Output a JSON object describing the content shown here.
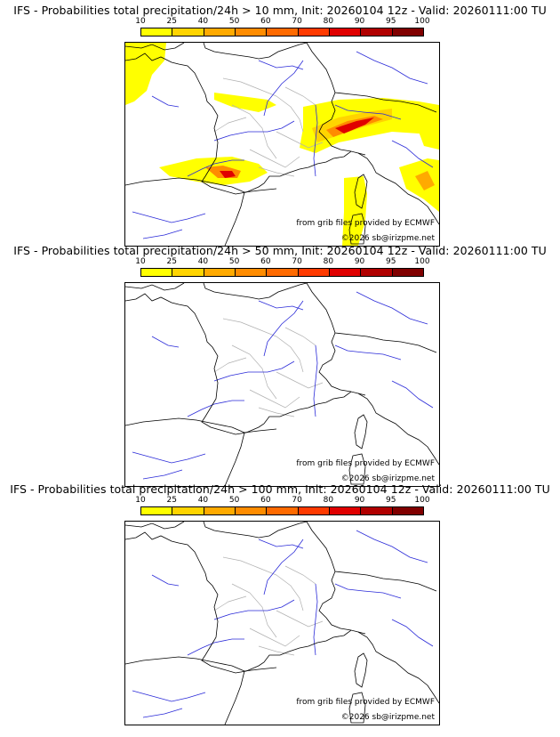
{
  "colorscale": {
    "ticks": [
      "10",
      "25",
      "40",
      "50",
      "60",
      "70",
      "80",
      "90",
      "95",
      "100"
    ],
    "colors": [
      "#ffff00",
      "#ffd400",
      "#ffaa00",
      "#ff8c00",
      "#ff6a00",
      "#ff3a00",
      "#e00000",
      "#b00000",
      "#800000",
      "#550000"
    ]
  },
  "colors": {
    "rivers": "#2a2ad8",
    "borders": "#000000",
    "regions": "#b0b0b0"
  },
  "panels": [
    {
      "title": "IFS - Probabilities total precipitation/24h > 10 mm, Init: 20260104 12z - Valid: 20260111:00 TU",
      "credit_source": "from grib files provided by ECMWF",
      "credit_copyright": "©2026 sb@irizpme.net",
      "has_precip": true
    },
    {
      "title": "IFS - Probabilities total precipitation/24h > 50 mm, Init: 20260104 12z - Valid: 20260111:00 TU",
      "credit_source": "from grib files provided by ECMWF",
      "credit_copyright": "©2026 sb@irizpme.net",
      "has_precip": false
    },
    {
      "title": "IFS - Probabilities total precipitation/24h > 100 mm, Init: 20260104 12z - Valid: 20260111:00 TU",
      "credit_source": "from grib files provided by ECMWF",
      "credit_copyright": "©2026 sb@irizpme.net",
      "has_precip": false
    }
  ]
}
